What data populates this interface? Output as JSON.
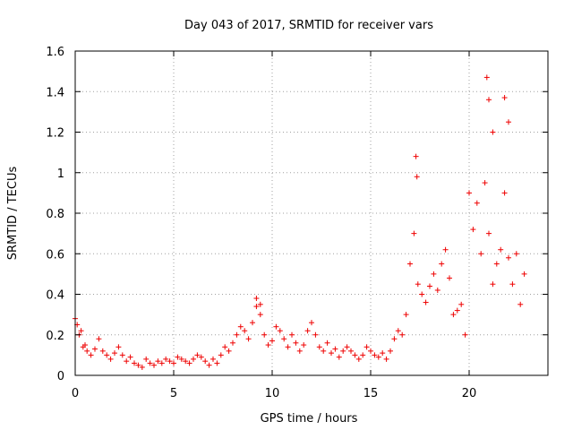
{
  "chart_data": {
    "type": "scatter",
    "title": "Day 043 of 2017, SRMTID for receiver vars",
    "xlabel": "GPS time / hours",
    "ylabel": "SRMTID / TECUs",
    "xlim": [
      0,
      24
    ],
    "ylim": [
      0,
      1.6
    ],
    "x_ticks": [
      0,
      5,
      10,
      15,
      20
    ],
    "x_tick_labels": [
      "0",
      "5",
      "10",
      "15",
      "20"
    ],
    "y_ticks": [
      0,
      0.2,
      0.4,
      0.6,
      0.8,
      1.0,
      1.2,
      1.4,
      1.6
    ],
    "y_tick_labels": [
      "0",
      "0.2",
      "0.4",
      "0.6",
      "0.8",
      "1",
      "1.2",
      "1.4",
      "1.6"
    ],
    "grid": true,
    "marker": "+",
    "color": "#ee0000",
    "series": [
      {
        "name": "SRMTID",
        "x": [
          0.0,
          0.2,
          0.4,
          0.6,
          0.8,
          1.0,
          1.2,
          1.4,
          1.6,
          1.8,
          2.0,
          2.2,
          2.4,
          2.6,
          2.8,
          3.0,
          3.2,
          3.4,
          3.6,
          3.8,
          4.0,
          4.2,
          4.4,
          4.6,
          4.8,
          5.0,
          5.2,
          5.4,
          5.6,
          5.8,
          6.0,
          6.2,
          6.4,
          6.6,
          6.8,
          7.0,
          7.2,
          7.4,
          7.6,
          7.8,
          8.0,
          8.2,
          8.4,
          8.6,
          8.8,
          9.0,
          9.2,
          9.4,
          9.6,
          9.8,
          10.0,
          10.2,
          10.4,
          10.6,
          10.8,
          11.0,
          11.2,
          11.4,
          11.6,
          11.8,
          12.0,
          12.2,
          12.4,
          12.6,
          12.8,
          13.0,
          13.2,
          13.4,
          13.6,
          13.8,
          14.0,
          14.2,
          14.4,
          14.6,
          14.8,
          15.0,
          15.2,
          15.4,
          15.6,
          15.8,
          16.0,
          16.2,
          16.4,
          16.6,
          16.8,
          17.0,
          17.2,
          17.4,
          17.6,
          17.8,
          18.0,
          18.2,
          18.4,
          18.6,
          18.8,
          19.0,
          19.2,
          19.4,
          19.6,
          19.8,
          20.0,
          20.2,
          20.4,
          20.6,
          20.8,
          21.0,
          21.2,
          21.4,
          21.6,
          21.8,
          22.0,
          22.2,
          22.4,
          22.6,
          22.8,
          0.1,
          0.3,
          0.5,
          9.2,
          9.4,
          17.3,
          17.35,
          20.9,
          21.0,
          21.8,
          22.0,
          21.2
        ],
        "y": [
          0.28,
          0.2,
          0.14,
          0.12,
          0.1,
          0.13,
          0.18,
          0.12,
          0.1,
          0.08,
          0.11,
          0.14,
          0.1,
          0.07,
          0.09,
          0.06,
          0.05,
          0.04,
          0.08,
          0.06,
          0.05,
          0.07,
          0.06,
          0.08,
          0.07,
          0.06,
          0.09,
          0.08,
          0.07,
          0.06,
          0.08,
          0.1,
          0.09,
          0.07,
          0.05,
          0.08,
          0.06,
          0.1,
          0.14,
          0.12,
          0.16,
          0.2,
          0.24,
          0.22,
          0.18,
          0.26,
          0.34,
          0.3,
          0.2,
          0.15,
          0.17,
          0.24,
          0.22,
          0.18,
          0.14,
          0.2,
          0.16,
          0.12,
          0.15,
          0.22,
          0.26,
          0.2,
          0.14,
          0.12,
          0.16,
          0.11,
          0.13,
          0.09,
          0.12,
          0.14,
          0.12,
          0.1,
          0.08,
          0.1,
          0.14,
          0.12,
          0.1,
          0.09,
          0.11,
          0.08,
          0.12,
          0.18,
          0.22,
          0.2,
          0.3,
          0.55,
          0.7,
          0.45,
          0.4,
          0.36,
          0.44,
          0.5,
          0.42,
          0.55,
          0.62,
          0.48,
          0.3,
          0.32,
          0.35,
          0.2,
          0.9,
          0.72,
          0.85,
          0.6,
          0.95,
          0.7,
          0.45,
          0.55,
          0.62,
          0.9,
          0.58,
          0.45,
          0.6,
          0.35,
          0.5,
          0.25,
          0.22,
          0.15,
          0.38,
          0.35,
          1.08,
          0.98,
          1.47,
          1.36,
          1.37,
          1.25,
          1.2
        ]
      }
    ]
  }
}
